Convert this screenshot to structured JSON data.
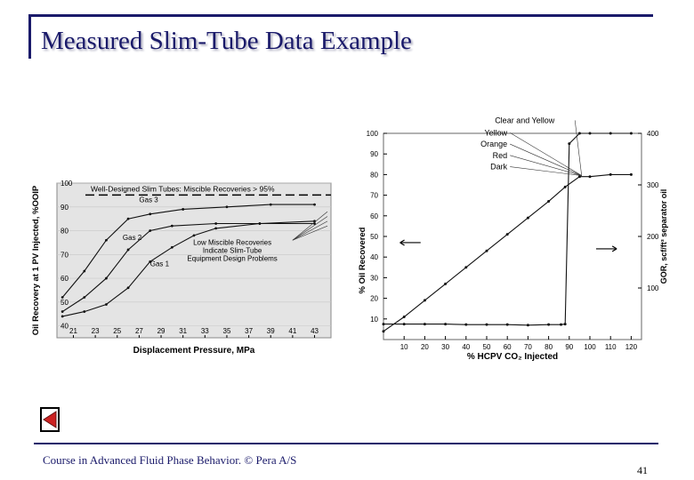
{
  "slide": {
    "title": "Measured Slim-Tube Data Example",
    "footer": "Course in Advanced Fluid Phase Behavior. © Pera A/S",
    "page_number": "41",
    "back_icon": "left-triangle-icon"
  },
  "colors": {
    "title": "#1a1a6a",
    "back_button": "#cc2222"
  },
  "chart_data": [
    {
      "type": "line",
      "xlabel": "Displacement Pressure, MPa",
      "ylabel": "Oil Recovery at 1 PV Injected, %OOIP",
      "xticks": [
        "21",
        "23",
        "25",
        "27",
        "29",
        "31",
        "33",
        "35",
        "37",
        "39",
        "41",
        "43"
      ],
      "x_values": [
        21,
        23,
        25,
        27,
        29,
        31,
        33,
        35,
        37,
        39,
        41,
        43
      ],
      "yticks": [
        40,
        50,
        60,
        70,
        80,
        90,
        100
      ],
      "xlim": [
        19.5,
        44.5
      ],
      "ylim": [
        35,
        100
      ],
      "annotations": {
        "threshold": "Well-Designed Slim Tubes: Miscible Recoveries > 95%",
        "low": "Low Miscible Recoveries\nIndicate Slim-Tube\nEquipment Design Problems"
      },
      "series": [
        {
          "name": "Gas 3",
          "points": [
            [
              20,
              52
            ],
            [
              22,
              63
            ],
            [
              24,
              76
            ],
            [
              26,
              85
            ],
            [
              28,
              87
            ],
            [
              31,
              89
            ],
            [
              35,
              90
            ],
            [
              39,
              91
            ],
            [
              43,
              91
            ]
          ]
        },
        {
          "name": "Gas 2",
          "points": [
            [
              20,
              46
            ],
            [
              22,
              52
            ],
            [
              24,
              60
            ],
            [
              26,
              72
            ],
            [
              28,
              80
            ],
            [
              30,
              82
            ],
            [
              34,
              83
            ],
            [
              38,
              83
            ],
            [
              43,
              84
            ]
          ]
        },
        {
          "name": "Gas 1",
          "points": [
            [
              20,
              44
            ],
            [
              22,
              46
            ],
            [
              24,
              49
            ],
            [
              26,
              56
            ],
            [
              28,
              67
            ],
            [
              30,
              73
            ],
            [
              32,
              78
            ],
            [
              34,
              81
            ],
            [
              38,
              83
            ],
            [
              43,
              83
            ]
          ]
        }
      ]
    },
    {
      "type": "line",
      "xlabel": "% HCPV CO₂ Injected",
      "ylabel": "% Oil Recovered",
      "y2label": "GOR, scf/ft³ separator oil",
      "xticks": [
        10,
        20,
        30,
        40,
        50,
        60,
        70,
        80,
        90,
        100,
        110,
        120
      ],
      "yticks": [
        10,
        20,
        30,
        40,
        50,
        60,
        70,
        80,
        90,
        100
      ],
      "y2ticks": [
        100,
        200,
        300,
        400
      ],
      "xlim": [
        0,
        125
      ],
      "ylim": [
        0,
        100
      ],
      "y2lim": [
        0,
        400
      ],
      "annotations": [
        "Clear and Yellow",
        "Yellow",
        "Orange",
        "Red",
        "Dark"
      ],
      "series": [
        {
          "name": "",
          "axis": "left",
          "points": [
            [
              0,
              4
            ],
            [
              10,
              11
            ],
            [
              20,
              19
            ],
            [
              30,
              27
            ],
            [
              40,
              35
            ],
            [
              50,
              43
            ],
            [
              60,
              51
            ],
            [
              70,
              59
            ],
            [
              80,
              67
            ],
            [
              88,
              74
            ],
            [
              95,
              79
            ],
            [
              100,
              79
            ],
            [
              110,
              80
            ],
            [
              120,
              80
            ]
          ]
        },
        {
          "name": "",
          "axis": "right",
          "points": [
            [
              0,
              30
            ],
            [
              10,
              30
            ],
            [
              20,
              30
            ],
            [
              30,
              30
            ],
            [
              40,
              29
            ],
            [
              50,
              29
            ],
            [
              60,
              29
            ],
            [
              70,
              28
            ],
            [
              80,
              29
            ],
            [
              86,
              29
            ],
            [
              88,
              30
            ],
            [
              90,
              380
            ],
            [
              95,
              400
            ],
            [
              100,
              400
            ],
            [
              110,
              400
            ],
            [
              120,
              400
            ]
          ]
        }
      ]
    }
  ]
}
